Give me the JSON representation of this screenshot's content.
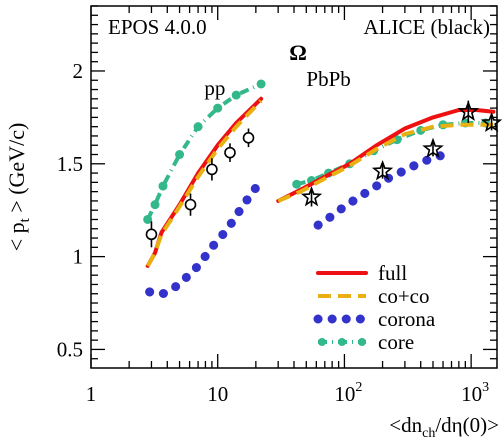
{
  "chart_data": {
    "type": "line",
    "title": "",
    "top_left_text": "EPOS 4.0.0",
    "top_right_text": "ALICE (black)",
    "particle_label": "Ω",
    "ylabel_parts": {
      "open": "< p",
      "sub": "t",
      "close": " > (GeV/c)"
    },
    "xlabel_parts": {
      "open": "<dn",
      "sub": "ch",
      "close": "/dη(0)>"
    },
    "xscale": "log",
    "xlim": [
      1,
      1600
    ],
    "ylim": [
      0.4,
      2.35
    ],
    "x_ticks": [
      {
        "value": 1,
        "label": "1",
        "base": "1",
        "exp": ""
      },
      {
        "value": 10,
        "label": "10",
        "base": "10",
        "exp": ""
      },
      {
        "value": 100,
        "label": "10^2",
        "base": "10",
        "exp": "2"
      },
      {
        "value": 1000,
        "label": "10^3",
        "base": "10",
        "exp": "3"
      }
    ],
    "y_ticks": [
      {
        "value": 0.5,
        "label": "0.5"
      },
      {
        "value": 1,
        "label": "1"
      },
      {
        "value": 1.5,
        "label": "1.5"
      },
      {
        "value": 2,
        "label": "2"
      }
    ],
    "system_labels": [
      {
        "text": "pp",
        "x": 9.5,
        "y": 1.87
      },
      {
        "text": "PbPb",
        "x": 75,
        "y": 1.92
      }
    ],
    "legend_position": "bottom-right",
    "series": [
      {
        "name": "full",
        "style": "solid",
        "color": "#ee1111",
        "segments": [
          {
            "x": [
              2.8,
              3.2,
              3.6,
              5,
              7,
              10,
              14,
              22
            ],
            "y": [
              0.95,
              1.02,
              1.13,
              1.28,
              1.45,
              1.6,
              1.72,
              1.85
            ]
          },
          {
            "x": [
              30,
              45,
              70,
              110,
              180,
              300,
              500,
              800,
              1100,
              1500
            ],
            "y": [
              1.3,
              1.36,
              1.43,
              1.5,
              1.6,
              1.69,
              1.75,
              1.79,
              1.79,
              1.78
            ]
          }
        ]
      },
      {
        "name": "co+co",
        "style": "dashed",
        "color": "#e8b010",
        "segments": [
          {
            "x": [
              2.8,
              3.2,
              3.6,
              5,
              7,
              10,
              14,
              22
            ],
            "y": [
              0.95,
              1.02,
              1.12,
              1.27,
              1.43,
              1.58,
              1.7,
              1.84
            ]
          },
          {
            "x": [
              30,
              45,
              70,
              110,
              180,
              300,
              500,
              800,
              1100,
              1500
            ],
            "y": [
              1.3,
              1.35,
              1.42,
              1.49,
              1.58,
              1.66,
              1.7,
              1.71,
              1.71,
              1.71
            ]
          }
        ]
      },
      {
        "name": "corona",
        "style": "dotted",
        "color": "#3333cc",
        "segments": [
          {
            "x": [
              2.9,
              3.2,
              3.7,
              4.5,
              5.5,
              7,
              9,
              12,
              16,
              22
            ],
            "y": [
              0.81,
              0.8,
              0.8,
              0.83,
              0.88,
              0.95,
              1.05,
              1.15,
              1.28,
              1.41
            ]
          },
          {
            "x": [
              62,
              80,
              100,
              130,
              170,
              220,
              290,
              380,
              490,
              620,
              700
            ],
            "y": [
              1.17,
              1.22,
              1.27,
              1.32,
              1.37,
              1.42,
              1.46,
              1.5,
              1.53,
              1.55,
              1.55
            ]
          }
        ]
      },
      {
        "name": "core",
        "style": "dashdot",
        "color": "#33b88a",
        "segments": [
          {
            "x": [
              2.8,
              3.2,
              3.7,
              5,
              7,
              10,
              14,
              22
            ],
            "y": [
              1.2,
              1.28,
              1.38,
              1.55,
              1.7,
              1.8,
              1.87,
              1.93
            ]
          },
          {
            "x": [
              42,
              55,
              75,
              110,
              170,
              260,
              400,
              600,
              900,
              1300
            ],
            "y": [
              1.39,
              1.41,
              1.45,
              1.5,
              1.57,
              1.63,
              1.68,
              1.71,
              1.72,
              1.72
            ]
          }
        ]
      }
    ],
    "data_points": {
      "name": "ALICE",
      "pp": {
        "marker": "circle",
        "x": [
          3.0,
          6.1,
          9.0,
          12.5,
          17.5
        ],
        "y": [
          1.12,
          1.28,
          1.47,
          1.56,
          1.64
        ],
        "err": [
          0.07,
          0.06,
          0.06,
          0.05,
          0.05
        ]
      },
      "PbPb": {
        "marker": "star",
        "x": [
          55,
          200,
          500,
          950,
          1450
        ],
        "y": [
          1.32,
          1.46,
          1.58,
          1.78,
          1.72
        ],
        "err": [
          0.05,
          0.04,
          0.04,
          0.06,
          0.04
        ]
      }
    }
  }
}
